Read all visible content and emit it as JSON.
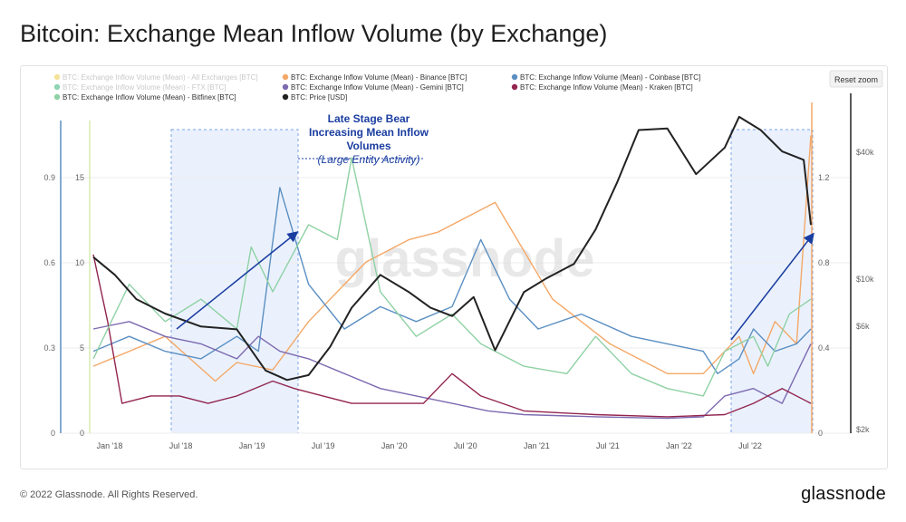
{
  "page": {
    "title": "Bitcoin: Exchange Mean Inflow Volume (by Exchange)",
    "copyright": "© 2022 Glassnode. All Rights Reserved.",
    "brand": "glassnode",
    "watermark": "glassnode"
  },
  "controls": {
    "reset_zoom": "Reset zoom"
  },
  "colors": {
    "all": "#f3e39a",
    "binance": "#f4a867",
    "coinbase": "#5b8fc2",
    "ftx": "#8fd4b4",
    "gemini": "#7d6ab0",
    "kraken": "#93254f",
    "bitfinex": "#8fd1a4",
    "price": "#222222",
    "annotation": "#1a3da0"
  },
  "chart_data": {
    "type": "line",
    "x_ticks": [
      "Jan '18",
      "Jul '18",
      "Jan '19",
      "Jul '19",
      "Jan '20",
      "Jul '20",
      "Jan '21",
      "Jul '21",
      "Jan '22",
      "Jul '22"
    ],
    "y_axes": {
      "left_a": {
        "ticks": [
          "0",
          "0.3",
          "0.6",
          "0.9"
        ],
        "range": [
          0,
          1.2
        ]
      },
      "left_b": {
        "ticks": [
          "0",
          "5",
          "10",
          "15"
        ],
        "range": [
          0,
          20
        ]
      },
      "right_a": {
        "ticks": [
          "0",
          "0.4",
          "0.8",
          "1.2"
        ],
        "range": [
          0,
          1.6
        ]
      },
      "right_price": {
        "ticks": [
          "$2k",
          "$6k",
          "$10k",
          "$40k"
        ],
        "scale": "log"
      }
    },
    "series": [
      {
        "name": "BTC: Exchange Inflow Volume (Mean) - All Exchanges [BTC]",
        "color": "#f3e39a",
        "values": []
      },
      {
        "name": "BTC: Exchange Inflow Volume (Mean) - Binance [BTC]",
        "color": "#f4a867",
        "values": [
          [
            0,
            0.9
          ],
          [
            0.1,
            1.3
          ],
          [
            0.17,
            0.7
          ],
          [
            0.2,
            0.95
          ],
          [
            0.25,
            0.85
          ],
          [
            0.3,
            1.5
          ],
          [
            0.38,
            2.3
          ],
          [
            0.44,
            2.6
          ],
          [
            0.48,
            2.7
          ],
          [
            0.56,
            3.1
          ],
          [
            0.64,
            1.8
          ],
          [
            0.72,
            1.2
          ],
          [
            0.8,
            0.8
          ],
          [
            0.85,
            0.8
          ],
          [
            0.88,
            1.1
          ],
          [
            0.9,
            1.3
          ],
          [
            0.92,
            0.8
          ],
          [
            0.95,
            1.5
          ],
          [
            0.98,
            1.2
          ],
          [
            1.0,
            4.0
          ]
        ]
      },
      {
        "name": "BTC: Exchange Inflow Volume (Mean) - Coinbase [BTC]",
        "color": "#5b8fc2",
        "values": [
          [
            0,
            1.1
          ],
          [
            0.05,
            1.3
          ],
          [
            0.1,
            1.1
          ],
          [
            0.15,
            1.0
          ],
          [
            0.2,
            1.3
          ],
          [
            0.23,
            1.1
          ],
          [
            0.26,
            3.3
          ],
          [
            0.3,
            2.0
          ],
          [
            0.35,
            1.4
          ],
          [
            0.4,
            1.7
          ],
          [
            0.45,
            1.5
          ],
          [
            0.5,
            1.7
          ],
          [
            0.54,
            2.6
          ],
          [
            0.58,
            1.8
          ],
          [
            0.62,
            1.4
          ],
          [
            0.68,
            1.6
          ],
          [
            0.75,
            1.3
          ],
          [
            0.8,
            1.2
          ],
          [
            0.85,
            1.1
          ],
          [
            0.87,
            0.8
          ],
          [
            0.9,
            1.0
          ],
          [
            0.92,
            1.4
          ],
          [
            0.95,
            1.1
          ],
          [
            0.98,
            1.2
          ],
          [
            1.0,
            1.4
          ]
        ]
      },
      {
        "name": "BTC: Exchange Inflow Volume (Mean) - FTX [BTC]",
        "color": "#8fd4b4",
        "values": []
      },
      {
        "name": "BTC: Exchange Inflow Volume (Mean) - Gemini [BTC]",
        "color": "#7d6ab0",
        "values": [
          [
            0,
            1.4
          ],
          [
            0.05,
            1.5
          ],
          [
            0.1,
            1.3
          ],
          [
            0.15,
            1.2
          ],
          [
            0.2,
            1.0
          ],
          [
            0.23,
            1.3
          ],
          [
            0.26,
            1.1
          ],
          [
            0.3,
            1.0
          ],
          [
            0.35,
            0.8
          ],
          [
            0.4,
            0.6
          ],
          [
            0.45,
            0.5
          ],
          [
            0.5,
            0.4
          ],
          [
            0.55,
            0.3
          ],
          [
            0.6,
            0.25
          ],
          [
            0.7,
            0.22
          ],
          [
            0.8,
            0.2
          ],
          [
            0.85,
            0.22
          ],
          [
            0.88,
            0.5
          ],
          [
            0.92,
            0.6
          ],
          [
            0.96,
            0.4
          ],
          [
            1.0,
            1.2
          ]
        ]
      },
      {
        "name": "BTC: Exchange Inflow Volume (Mean) - Kraken [BTC]",
        "color": "#93254f",
        "values": [
          [
            0,
            2.4
          ],
          [
            0.02,
            1.5
          ],
          [
            0.04,
            0.4
          ],
          [
            0.08,
            0.5
          ],
          [
            0.12,
            0.5
          ],
          [
            0.16,
            0.4
          ],
          [
            0.2,
            0.5
          ],
          [
            0.25,
            0.7
          ],
          [
            0.28,
            0.6
          ],
          [
            0.32,
            0.5
          ],
          [
            0.36,
            0.4
          ],
          [
            0.4,
            0.4
          ],
          [
            0.46,
            0.4
          ],
          [
            0.5,
            0.8
          ],
          [
            0.54,
            0.5
          ],
          [
            0.6,
            0.3
          ],
          [
            0.7,
            0.25
          ],
          [
            0.8,
            0.22
          ],
          [
            0.88,
            0.25
          ],
          [
            0.92,
            0.4
          ],
          [
            0.96,
            0.6
          ],
          [
            1.0,
            0.4
          ]
        ]
      },
      {
        "name": "BTC: Exchange Inflow Volume (Mean) - Bitfinex [BTC]",
        "color": "#8fd1a4",
        "values": [
          [
            0,
            1.0
          ],
          [
            0.05,
            2.0
          ],
          [
            0.1,
            1.5
          ],
          [
            0.15,
            1.8
          ],
          [
            0.2,
            1.4
          ],
          [
            0.22,
            2.5
          ],
          [
            0.25,
            1.9
          ],
          [
            0.3,
            2.8
          ],
          [
            0.34,
            2.6
          ],
          [
            0.36,
            3.7
          ],
          [
            0.4,
            1.9
          ],
          [
            0.45,
            1.3
          ],
          [
            0.5,
            1.6
          ],
          [
            0.54,
            1.2
          ],
          [
            0.6,
            0.9
          ],
          [
            0.66,
            0.8
          ],
          [
            0.7,
            1.3
          ],
          [
            0.75,
            0.8
          ],
          [
            0.8,
            0.6
          ],
          [
            0.85,
            0.5
          ],
          [
            0.88,
            1.1
          ],
          [
            0.92,
            1.3
          ],
          [
            0.94,
            0.9
          ],
          [
            0.97,
            1.6
          ],
          [
            1.0,
            1.8
          ]
        ]
      },
      {
        "name": "BTC: Price [USD]",
        "color": "#222222",
        "values": [
          [
            0,
            14000
          ],
          [
            0.03,
            11500
          ],
          [
            0.06,
            8800
          ],
          [
            0.1,
            7500
          ],
          [
            0.15,
            6500
          ],
          [
            0.2,
            6300
          ],
          [
            0.24,
            4000
          ],
          [
            0.27,
            3600
          ],
          [
            0.3,
            3800
          ],
          [
            0.33,
            5200
          ],
          [
            0.36,
            8000
          ],
          [
            0.4,
            11500
          ],
          [
            0.44,
            9500
          ],
          [
            0.47,
            8000
          ],
          [
            0.5,
            7300
          ],
          [
            0.53,
            9000
          ],
          [
            0.56,
            5000
          ],
          [
            0.6,
            9500
          ],
          [
            0.63,
            11000
          ],
          [
            0.67,
            13000
          ],
          [
            0.7,
            19000
          ],
          [
            0.73,
            32000
          ],
          [
            0.76,
            57000
          ],
          [
            0.8,
            58000
          ],
          [
            0.84,
            35000
          ],
          [
            0.88,
            47000
          ],
          [
            0.9,
            66000
          ],
          [
            0.93,
            57000
          ],
          [
            0.96,
            45000
          ],
          [
            0.99,
            41000
          ],
          [
            1.0,
            20000
          ]
        ]
      }
    ],
    "annotations": {
      "line1": "Late Stage Bear",
      "line2": "Increasing Mean Inflow",
      "line3": "Volumes",
      "line4": "(Large Entity Activity)"
    },
    "legend": "top-left"
  }
}
